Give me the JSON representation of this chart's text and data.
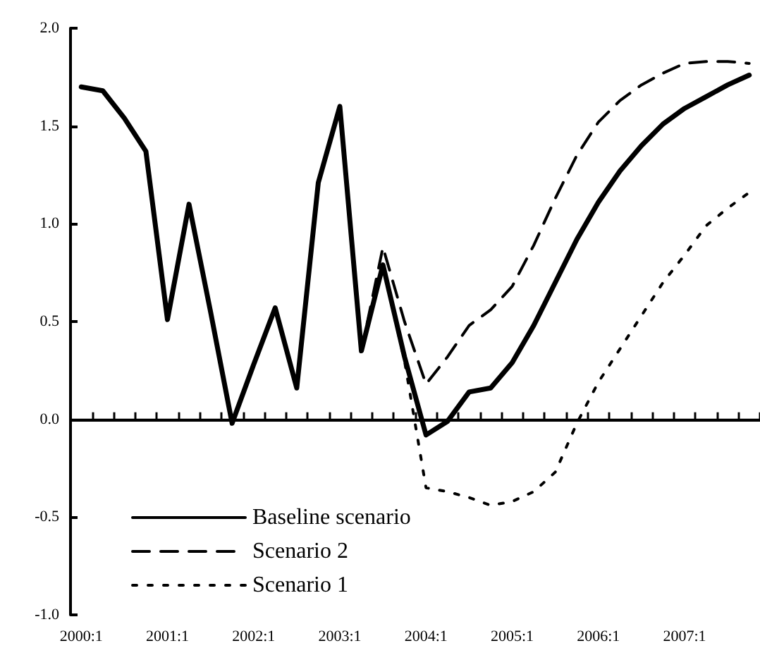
{
  "chart_data": {
    "type": "line",
    "categories": [
      "2000:1",
      null,
      null,
      null,
      "2001:1",
      null,
      null,
      null,
      "2002:1",
      null,
      null,
      null,
      "2003:1",
      null,
      null,
      null,
      "2004:1",
      null,
      null,
      null,
      "2005:1",
      null,
      null,
      null,
      "2006:1",
      null,
      null,
      null,
      "2007:1",
      null,
      null,
      null
    ],
    "ylim": [
      -1,
      2
    ],
    "yticks": [
      {
        "value": -1,
        "label": "-1.0"
      },
      {
        "value": -0.5,
        "label": "-0.5"
      },
      {
        "value": 0,
        "label": "0.0"
      },
      {
        "value": 0.5,
        "label": "0.5"
      },
      {
        "value": 1,
        "label": "1.0"
      },
      {
        "value": 1.5,
        "label": "1.5"
      },
      {
        "value": 2,
        "label": "2.0"
      }
    ],
    "series": [
      {
        "name": "Baseline scenario",
        "color": "#000000",
        "line_style": "solid",
        "values": [
          1.7,
          1.68,
          1.54,
          1.37,
          0.51,
          1.1,
          0.55,
          -0.02,
          0.28,
          0.57,
          0.16,
          1.21,
          1.6,
          0.35,
          0.79,
          0.32,
          -0.08,
          -0.01,
          0.14,
          0.16,
          0.29,
          0.48,
          0.7,
          0.92,
          1.11,
          1.27,
          1.4,
          1.51,
          1.59,
          1.65,
          1.71,
          1.76
        ]
      },
      {
        "name": "Scenario 2",
        "color": "#000000",
        "line_style": "dashed",
        "values": [
          null,
          null,
          null,
          null,
          null,
          null,
          null,
          null,
          null,
          null,
          null,
          null,
          null,
          0.35,
          0.88,
          0.5,
          0.18,
          0.32,
          0.48,
          0.56,
          0.68,
          0.89,
          1.13,
          1.35,
          1.52,
          1.63,
          1.71,
          1.77,
          1.82,
          1.83,
          1.83,
          1.82
        ]
      },
      {
        "name": "Scenario 1",
        "color": "#000000",
        "line_style": "dotted",
        "values": [
          null,
          null,
          null,
          null,
          null,
          null,
          null,
          null,
          null,
          null,
          null,
          null,
          null,
          0.35,
          0.78,
          0.3,
          -0.35,
          -0.37,
          -0.4,
          -0.44,
          -0.42,
          -0.37,
          -0.27,
          -0.02,
          0.19,
          0.36,
          0.53,
          0.7,
          0.84,
          0.99,
          1.08,
          1.16
        ]
      }
    ],
    "ref_lines": [
      {
        "axis": "y",
        "value": 0,
        "color": "#000000",
        "line_style": "solid"
      }
    ],
    "legend": "bottom left",
    "grid": false,
    "marker": "none"
  }
}
